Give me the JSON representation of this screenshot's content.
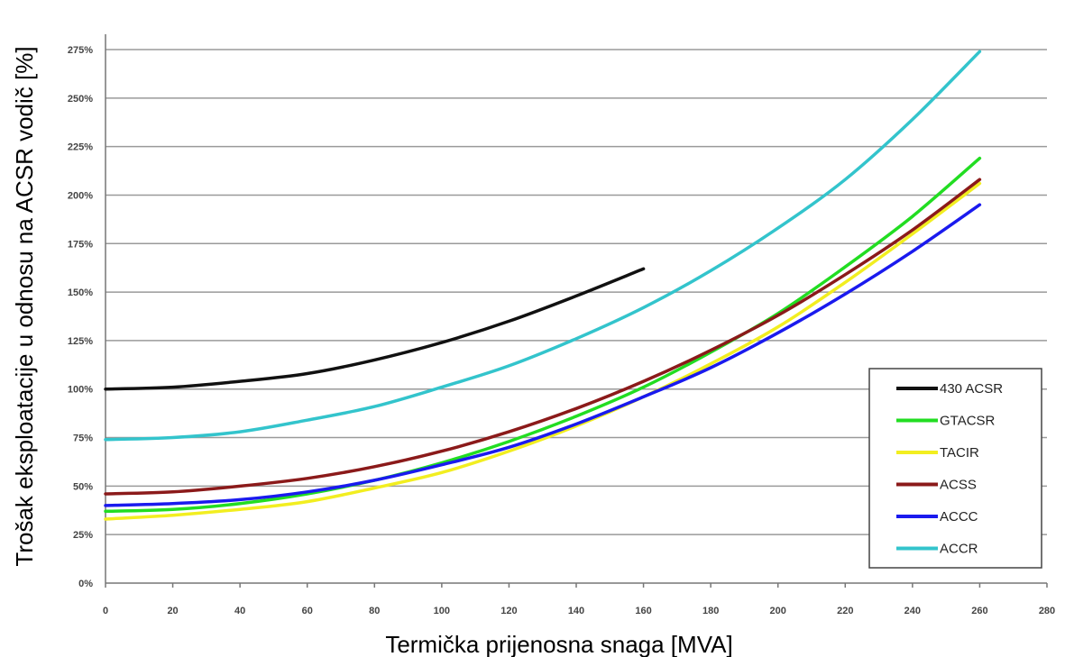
{
  "chart_data": {
    "type": "line",
    "xlabel": "Termička prijenosna snaga [MVA]",
    "ylabel": "Trošak eksploatacije u odnosu na ACSR vodič [%]",
    "xlim": [
      0,
      280
    ],
    "ylim": [
      0,
      275
    ],
    "x_ticks": [
      0,
      20,
      40,
      60,
      80,
      100,
      120,
      140,
      160,
      180,
      200,
      220,
      240,
      260,
      280
    ],
    "y_ticks": [
      0,
      25,
      50,
      75,
      100,
      125,
      150,
      175,
      200,
      225,
      250,
      275
    ],
    "y_tick_labels": [
      "0%",
      "25%",
      "50%",
      "75%",
      "100%",
      "125%",
      "150%",
      "175%",
      "200%",
      "225%",
      "250%",
      "275%"
    ],
    "grid": "horizontal",
    "legend_position": "bottom-right",
    "series": [
      {
        "name": "430 ACSR",
        "color": "#111111",
        "x": [
          0,
          20,
          40,
          60,
          80,
          100,
          120,
          140,
          160
        ],
        "y": [
          100,
          101,
          104,
          108,
          115,
          124,
          135,
          148,
          162
        ]
      },
      {
        "name": "GTACSR",
        "color": "#22dd22",
        "x": [
          0,
          20,
          40,
          60,
          80,
          100,
          120,
          140,
          160,
          180,
          200,
          220,
          240,
          260
        ],
        "y": [
          37,
          38,
          41,
          46,
          53,
          62,
          73,
          86,
          101,
          119,
          139,
          163,
          189,
          219
        ]
      },
      {
        "name": "TACIR",
        "color": "#f2ee20",
        "x": [
          0,
          20,
          40,
          60,
          80,
          100,
          120,
          140,
          160,
          180,
          200,
          220,
          240,
          260
        ],
        "y": [
          33,
          35,
          38,
          42,
          49,
          57,
          68,
          81,
          96,
          113,
          132,
          155,
          180,
          206
        ]
      },
      {
        "name": "ACSS",
        "color": "#8b1a1a",
        "x": [
          0,
          20,
          40,
          60,
          80,
          100,
          120,
          140,
          160,
          180,
          200,
          220,
          240,
          260
        ],
        "y": [
          46,
          47,
          50,
          54,
          60,
          68,
          78,
          90,
          104,
          120,
          138,
          159,
          182,
          208
        ]
      },
      {
        "name": "ACCC",
        "color": "#1a1aee",
        "x": [
          0,
          20,
          40,
          60,
          80,
          100,
          120,
          140,
          160,
          180,
          200,
          220,
          240,
          260
        ],
        "y": [
          40,
          41,
          43,
          47,
          53,
          61,
          70,
          82,
          96,
          111,
          129,
          149,
          171,
          195
        ]
      },
      {
        "name": "ACCR",
        "color": "#33c4cc",
        "x": [
          0,
          20,
          40,
          60,
          80,
          100,
          120,
          140,
          160,
          180,
          200,
          220,
          240,
          260
        ],
        "y": [
          74,
          75,
          78,
          84,
          91,
          101,
          112,
          126,
          142,
          161,
          183,
          208,
          239,
          274
        ]
      }
    ]
  }
}
